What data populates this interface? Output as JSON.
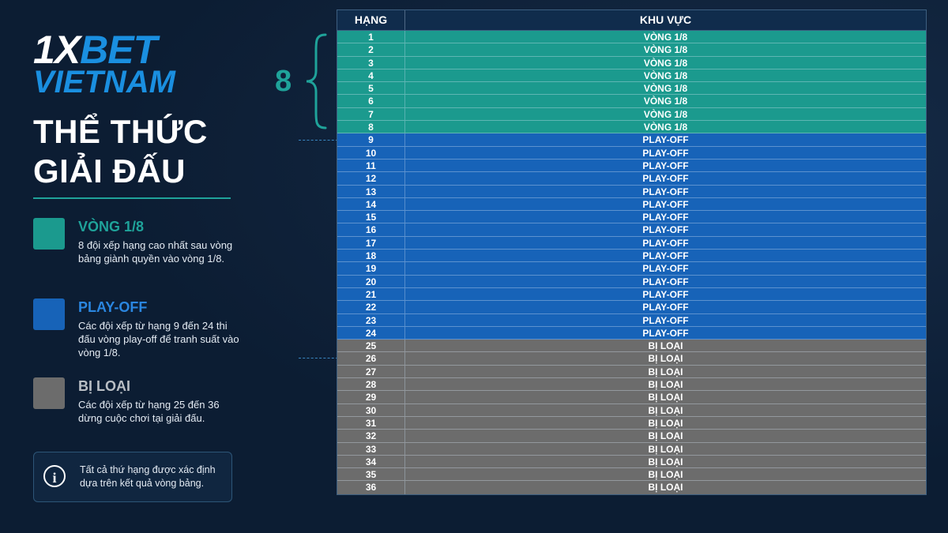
{
  "brand": {
    "one": "1X",
    "bet": "BET",
    "country": "VIETNAM"
  },
  "title": {
    "line1": "THỂ THỨC",
    "line2": "GIẢI ĐẤU"
  },
  "colors": {
    "round16": "#1b9a8e",
    "playoff": "#1763b8",
    "eliminated": "#6c6c6c",
    "accent": "#1fa39a",
    "brand_blue": "#1a8fe0"
  },
  "legend": [
    {
      "title": "VÒNG 1/8",
      "desc": "8 đội xếp hạng cao nhất sau vòng bảng giành quyền vào vòng 1/8.",
      "color": "#1b9a8e",
      "title_color": "#1fa39a"
    },
    {
      "title": "PLAY-OFF",
      "desc": "Các đội xếp từ hạng 9 đến 24 thi đấu vòng play-off để tranh suất vào vòng 1/8.",
      "color": "#1763b8",
      "title_color": "#2a86e0"
    },
    {
      "title": "BỊ LOẠI",
      "desc": "Các đội xếp từ hạng 25 đến 36 dừng cuộc chơi tại giải đấu.",
      "color": "#6c6c6c",
      "title_color": "#b9bec4"
    }
  ],
  "info": {
    "icon": "info-icon",
    "text": "Tất cả thứ hạng được xác định dựa trên kết quả vòng bảng."
  },
  "bracket": {
    "count": "8"
  },
  "table": {
    "headers": [
      "HẠNG",
      "KHU VỰC"
    ],
    "rows": [
      {
        "rank": "1",
        "zone": "VÒNG 1/8",
        "type": "round16"
      },
      {
        "rank": "2",
        "zone": "VÒNG 1/8",
        "type": "round16"
      },
      {
        "rank": "3",
        "zone": "VÒNG 1/8",
        "type": "round16"
      },
      {
        "rank": "4",
        "zone": "VÒNG 1/8",
        "type": "round16"
      },
      {
        "rank": "5",
        "zone": "VÒNG 1/8",
        "type": "round16"
      },
      {
        "rank": "6",
        "zone": "VÒNG 1/8",
        "type": "round16"
      },
      {
        "rank": "7",
        "zone": "VÒNG 1/8",
        "type": "round16"
      },
      {
        "rank": "8",
        "zone": "VÒNG 1/8",
        "type": "round16"
      },
      {
        "rank": "9",
        "zone": "PLAY-OFF",
        "type": "playoff"
      },
      {
        "rank": "10",
        "zone": "PLAY-OFF",
        "type": "playoff"
      },
      {
        "rank": "11",
        "zone": "PLAY-OFF",
        "type": "playoff"
      },
      {
        "rank": "12",
        "zone": "PLAY-OFF",
        "type": "playoff"
      },
      {
        "rank": "13",
        "zone": "PLAY-OFF",
        "type": "playoff"
      },
      {
        "rank": "14",
        "zone": "PLAY-OFF",
        "type": "playoff"
      },
      {
        "rank": "15",
        "zone": "PLAY-OFF",
        "type": "playoff"
      },
      {
        "rank": "16",
        "zone": "PLAY-OFF",
        "type": "playoff"
      },
      {
        "rank": "17",
        "zone": "PLAY-OFF",
        "type": "playoff"
      },
      {
        "rank": "18",
        "zone": "PLAY-OFF",
        "type": "playoff"
      },
      {
        "rank": "19",
        "zone": "PLAY-OFF",
        "type": "playoff"
      },
      {
        "rank": "20",
        "zone": "PLAY-OFF",
        "type": "playoff"
      },
      {
        "rank": "21",
        "zone": "PLAY-OFF",
        "type": "playoff"
      },
      {
        "rank": "22",
        "zone": "PLAY-OFF",
        "type": "playoff"
      },
      {
        "rank": "23",
        "zone": "PLAY-OFF",
        "type": "playoff"
      },
      {
        "rank": "24",
        "zone": "PLAY-OFF",
        "type": "playoff"
      },
      {
        "rank": "25",
        "zone": "BỊ LOẠI",
        "type": "eliminated"
      },
      {
        "rank": "26",
        "zone": "BỊ LOẠI",
        "type": "eliminated"
      },
      {
        "rank": "27",
        "zone": "BỊ LOẠI",
        "type": "eliminated"
      },
      {
        "rank": "28",
        "zone": "BỊ LOẠI",
        "type": "eliminated"
      },
      {
        "rank": "29",
        "zone": "BỊ LOẠI",
        "type": "eliminated"
      },
      {
        "rank": "30",
        "zone": "BỊ LOẠI",
        "type": "eliminated"
      },
      {
        "rank": "31",
        "zone": "BỊ LOẠI",
        "type": "eliminated"
      },
      {
        "rank": "32",
        "zone": "BỊ LOẠI",
        "type": "eliminated"
      },
      {
        "rank": "33",
        "zone": "BỊ LOẠI",
        "type": "eliminated"
      },
      {
        "rank": "34",
        "zone": "BỊ LOẠI",
        "type": "eliminated"
      },
      {
        "rank": "35",
        "zone": "BỊ LOẠI",
        "type": "eliminated"
      },
      {
        "rank": "36",
        "zone": "BỊ LOẠI",
        "type": "eliminated"
      }
    ]
  }
}
